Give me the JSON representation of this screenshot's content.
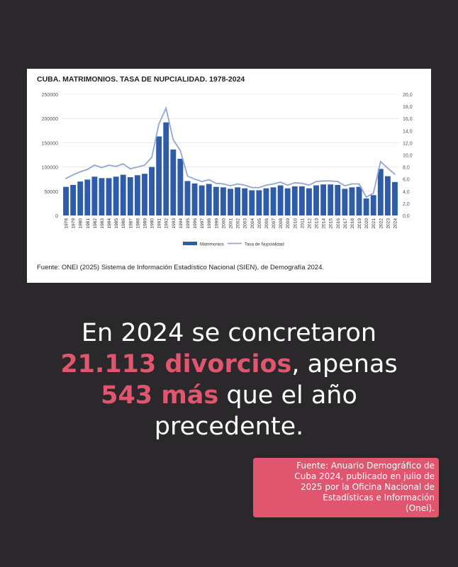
{
  "chart_data": {
    "type": "bar",
    "title": "CUBA. MATRIMONIOS. TASA DE NUPCIALIDAD. 1978-2024",
    "categories": [
      "1978",
      "1979",
      "1980",
      "1981",
      "1982",
      "1983",
      "1984",
      "1985",
      "1986",
      "1987",
      "1988",
      "1989",
      "1990",
      "1991",
      "1992",
      "1993",
      "1994",
      "1995",
      "1996",
      "1997",
      "1998",
      "1999",
      "2000",
      "2001",
      "2002",
      "2003",
      "2004",
      "2005",
      "2006",
      "2007",
      "2008",
      "2009",
      "2010",
      "2011",
      "2012",
      "2013",
      "2014",
      "2015",
      "2016",
      "2017",
      "2018",
      "2019",
      "2020",
      "2021",
      "2022",
      "2023",
      "2024"
    ],
    "series": [
      {
        "name": "Matrimonios",
        "type": "bar",
        "axis": "left",
        "values": [
          59000,
          63000,
          70000,
          74000,
          80000,
          77000,
          77000,
          80000,
          84000,
          79000,
          83000,
          86000,
          100000,
          163000,
          192000,
          136000,
          117000,
          71000,
          66000,
          62000,
          65000,
          59000,
          58000,
          55000,
          58000,
          56000,
          52000,
          52000,
          56000,
          58000,
          62000,
          56000,
          60000,
          60000,
          56000,
          62000,
          64000,
          64000,
          63000,
          55000,
          58000,
          59000,
          35000,
          42000,
          96000,
          81000,
          69000
        ]
      },
      {
        "name": "Tasa de Nupcialidad",
        "type": "line",
        "axis": "right",
        "values": [
          6.1,
          6.7,
          7.2,
          7.6,
          8.3,
          7.9,
          8.3,
          8.1,
          8.5,
          7.7,
          8.0,
          8.3,
          9.6,
          15.1,
          17.7,
          12.5,
          10.7,
          6.5,
          6.0,
          5.6,
          5.9,
          5.3,
          5.2,
          4.9,
          5.2,
          5.0,
          4.6,
          4.6,
          5.0,
          5.2,
          5.5,
          5.0,
          5.4,
          5.3,
          5.0,
          5.6,
          5.7,
          5.7,
          5.6,
          4.9,
          5.2,
          5.2,
          3.0,
          3.7,
          8.9,
          7.8,
          6.8
        ]
      }
    ],
    "y_left": {
      "ylim": [
        0,
        250000
      ],
      "ticks": [
        "0",
        "50000",
        "100000",
        "150000",
        "200000",
        "250000"
      ]
    },
    "y_right": {
      "ylim": [
        0,
        20
      ],
      "ticks": [
        "0,0",
        "2,0",
        "4,0",
        "6,0",
        "8,0",
        "10,0",
        "12,0",
        "14,0",
        "16,0",
        "18,0",
        "20,0"
      ]
    },
    "legend": {
      "position": "bottom",
      "items": [
        "Matrimonios",
        "Tasa de Nupcialidad"
      ]
    },
    "grid": true,
    "source": "Fuente: ONEI (2025) Sistema de Información Estadístico Nacional (SIEN), de Demografía 2024.",
    "colors": {
      "bars": "#2f5ca8",
      "line": "#93a7cf",
      "grid": "#dddddd"
    }
  },
  "headline": {
    "line1": "En 2024 se concretaron",
    "highlight1": "21.113 divorcios",
    "mid": ", apenas",
    "highlight2": "543 más",
    "tail": " que el año",
    "line4": "precedente."
  },
  "source_note": {
    "line1": "Fuente: Anuario Demográfico de",
    "line2": "Cuba 2024, publicado en julio de",
    "line3": "2025 por la Oficina Nacional de",
    "line4": "Estadísticas e Información",
    "line5": "(Onei)."
  },
  "colors": {
    "background": "#2b282b",
    "accent": "#e0566f",
    "text": "#ffffff"
  }
}
